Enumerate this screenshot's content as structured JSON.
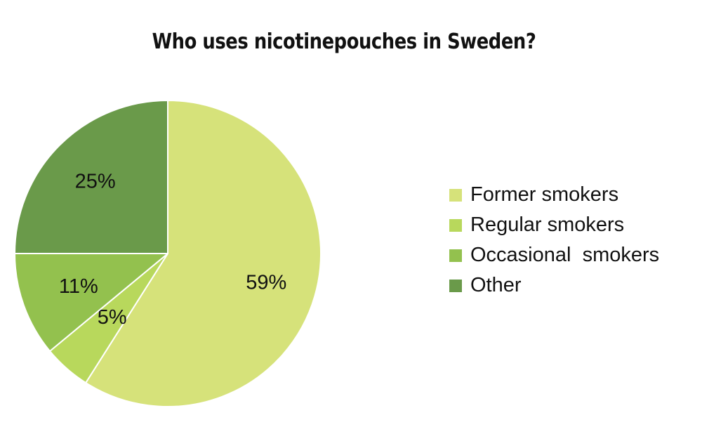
{
  "chart_data": {
    "type": "pie",
    "title": "Who uses nicotinepouches in Sweden?",
    "categories": [
      "Former smokers",
      "Regular smokers",
      "Occasional  smokers",
      "Other"
    ],
    "values": [
      59,
      5,
      11,
      25
    ],
    "data_labels": [
      "59%",
      "5%",
      "11%",
      "25%"
    ],
    "colors": [
      "#d6e27a",
      "#b8d85c",
      "#93c14e",
      "#6a9a4a"
    ],
    "start_angle_deg": 0,
    "direction": "clockwise",
    "legend_position": "right"
  }
}
